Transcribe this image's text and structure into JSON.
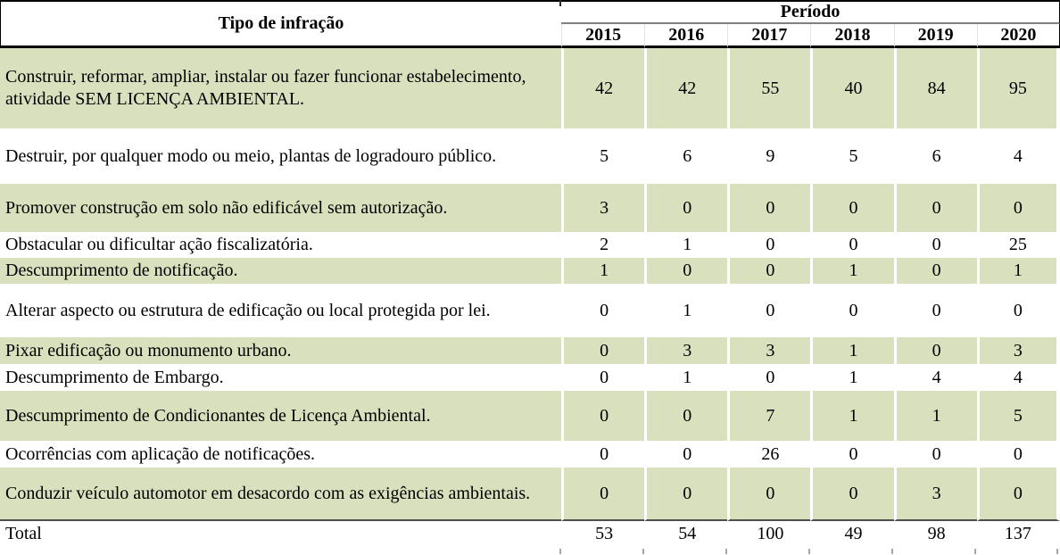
{
  "chart_data": {
    "type": "table",
    "title": "",
    "row_header_label": "Tipo de infração",
    "column_group_label": "Período",
    "years": [
      "2015",
      "2016",
      "2017",
      "2018",
      "2019",
      "2020"
    ],
    "rows": [
      {
        "label": "Construir, reformar, ampliar, instalar ou fazer funcionar estabelecimento, atividade SEM LICENÇA AMBIENTAL.",
        "values": [
          42,
          42,
          55,
          40,
          84,
          95
        ]
      },
      {
        "label": "Destruir, por qualquer modo ou meio, plantas de logradouro público.",
        "values": [
          5,
          6,
          9,
          5,
          6,
          4
        ]
      },
      {
        "label": "Promover construção em solo não edificável sem autorização.",
        "values": [
          3,
          0,
          0,
          0,
          0,
          0
        ]
      },
      {
        "label": "Obstacular ou dificultar ação fiscalizatória.",
        "values": [
          2,
          1,
          0,
          0,
          0,
          25
        ]
      },
      {
        "label": "Descumprimento de notificação.",
        "values": [
          1,
          0,
          0,
          1,
          0,
          1
        ]
      },
      {
        "label": "Alterar aspecto ou estrutura de edificação ou local protegida por lei.",
        "values": [
          0,
          1,
          0,
          0,
          0,
          0
        ]
      },
      {
        "label": "Pixar edificação ou monumento urbano.",
        "values": [
          0,
          3,
          3,
          1,
          0,
          3
        ]
      },
      {
        "label": "Descumprimento de Embargo.",
        "values": [
          0,
          1,
          0,
          1,
          4,
          4
        ]
      },
      {
        "label": "Descumprimento de Condicionantes de Licença Ambiental.",
        "values": [
          0,
          0,
          7,
          1,
          1,
          5
        ]
      },
      {
        "label": "Ocorrências com aplicação de notificações.",
        "values": [
          0,
          0,
          26,
          0,
          0,
          0
        ]
      },
      {
        "label": "Conduzir veículo automotor em desacordo com as exigências ambientais.",
        "values": [
          0,
          0,
          0,
          0,
          3,
          0
        ]
      }
    ],
    "total": {
      "label": "Total",
      "values": [
        53,
        54,
        100,
        49,
        98,
        137
      ]
    },
    "colors": {
      "row_shading_green": "#d8e0bd",
      "period_rule_gray": "#7f7f7f",
      "total_rule_gray": "#4d4d4d",
      "border_black": "#000000"
    }
  }
}
